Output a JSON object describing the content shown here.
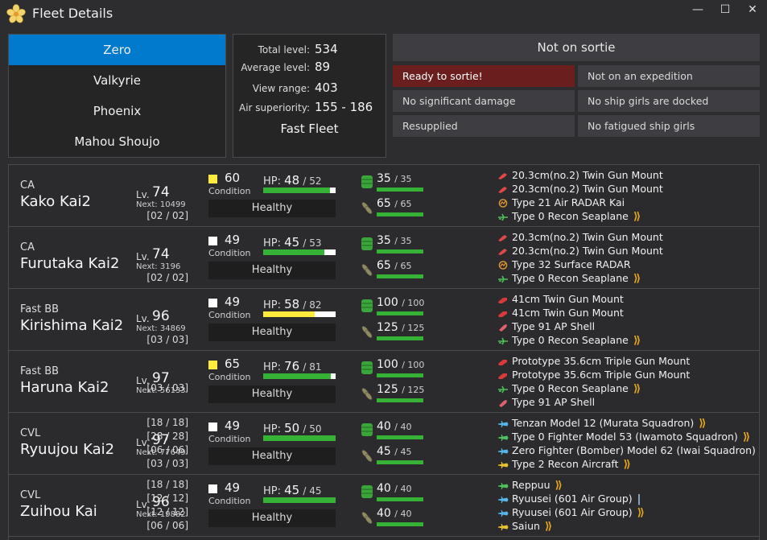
{
  "window": {
    "title": "Fleet Details",
    "icon": "flower-icon",
    "minimize_label": "—",
    "maximize_label": "☐",
    "close_label": "✕"
  },
  "fleets": [
    {
      "label": "Zero",
      "active": true
    },
    {
      "label": "Valkyrie",
      "active": false
    },
    {
      "label": "Phoenix",
      "active": false
    },
    {
      "label": "Mahou Shoujo",
      "active": false
    }
  ],
  "stats": {
    "total_level_label": "Total level:",
    "total_level": "534",
    "average_level_label": "Average level:",
    "average_level": "89",
    "view_range_label": "View range:",
    "view_range": "403",
    "air_superiority_label": "Air superiority:",
    "air_superiority": "155 - 186",
    "speed": "Fast Fleet"
  },
  "sortie": {
    "header": "Not on sortie",
    "conditions": [
      {
        "label": "Ready to sortie!",
        "alert": true
      },
      {
        "label": "Not on an expedition",
        "alert": false
      },
      {
        "label": "No significant damage",
        "alert": false
      },
      {
        "label": "No ship girls are docked",
        "alert": false
      },
      {
        "label": "Resupplied",
        "alert": false
      },
      {
        "label": "No fatigued ship girls",
        "alert": false
      }
    ]
  },
  "labels": {
    "lv": "Lv.",
    "next": "Next:",
    "condition": "Condition",
    "hp": "HP:"
  },
  "ships": [
    {
      "type": "CA",
      "name": "Kako Kai2",
      "level": "74",
      "next": "10499",
      "condition": "60",
      "condition_color": "#ffeb3b",
      "hp_current": "48",
      "hp_max": "/ 52",
      "hp_fraction": 0.923,
      "hp_color": "#36b336",
      "health": "Healthy",
      "fuel": "35",
      "fuel_max": "/ 35",
      "ammo": "65",
      "ammo_max": "/ 65",
      "equipment": [
        {
          "slot": "",
          "icon": "main-gun-icon",
          "name": "20.3cm(no.2) Twin Gun Mount",
          "prof": ""
        },
        {
          "slot": "",
          "icon": "main-gun-icon",
          "name": "20.3cm(no.2) Twin Gun Mount",
          "prof": ""
        },
        {
          "slot": "",
          "icon": "radar-icon",
          "name": "Type 21 Air RADAR Kai",
          "prof": ""
        },
        {
          "slot": "[02 / 02]",
          "icon": "seaplane-icon",
          "name": "Type 0 Recon Seaplane",
          "prof": "⟫"
        }
      ]
    },
    {
      "type": "CA",
      "name": "Furutaka Kai2",
      "level": "74",
      "next": "3196",
      "condition": "49",
      "condition_color": "#ffffff",
      "hp_current": "45",
      "hp_max": "/ 53",
      "hp_fraction": 0.849,
      "hp_color": "#36b336",
      "health": "Healthy",
      "fuel": "35",
      "fuel_max": "/ 35",
      "ammo": "65",
      "ammo_max": "/ 65",
      "equipment": [
        {
          "slot": "",
          "icon": "main-gun-icon",
          "name": "20.3cm(no.2) Twin Gun Mount",
          "prof": ""
        },
        {
          "slot": "",
          "icon": "main-gun-icon",
          "name": "20.3cm(no.2) Twin Gun Mount",
          "prof": ""
        },
        {
          "slot": "",
          "icon": "radar-icon",
          "name": "Type 32 Surface RADAR",
          "prof": ""
        },
        {
          "slot": "[02 / 02]",
          "icon": "seaplane-icon",
          "name": "Type 0 Recon Seaplane",
          "prof": "⟫"
        }
      ]
    },
    {
      "type": "Fast BB",
      "name": "Kirishima Kai2",
      "level": "96",
      "next": "34869",
      "condition": "49",
      "condition_color": "#ffffff",
      "hp_current": "58",
      "hp_max": "/ 82",
      "hp_fraction": 0.707,
      "hp_color": "#ffeb3b",
      "health": "Healthy",
      "fuel": "100",
      "fuel_max": "/ 100",
      "ammo": "125",
      "ammo_max": "/ 125",
      "equipment": [
        {
          "slot": "",
          "icon": "large-gun-icon",
          "name": "41cm Twin Gun Mount",
          "prof": ""
        },
        {
          "slot": "",
          "icon": "large-gun-icon",
          "name": "41cm Twin Gun Mount",
          "prof": ""
        },
        {
          "slot": "",
          "icon": "ap-shell-icon",
          "name": "Type 91 AP Shell",
          "prof": ""
        },
        {
          "slot": "[03 / 03]",
          "icon": "seaplane-icon",
          "name": "Type 0 Recon Seaplane",
          "prof": "⟫"
        }
      ]
    },
    {
      "type": "Fast BB",
      "name": "Haruna Kai2",
      "level": "97",
      "next": "56133",
      "condition": "65",
      "condition_color": "#ffeb3b",
      "hp_current": "76",
      "hp_max": "/ 81",
      "hp_fraction": 0.938,
      "hp_color": "#36b336",
      "health": "Healthy",
      "fuel": "100",
      "fuel_max": "/ 100",
      "ammo": "125",
      "ammo_max": "/ 125",
      "equipment": [
        {
          "slot": "",
          "icon": "large-gun-icon",
          "name": "Prototype 35.6cm Triple Gun Mount",
          "prof": ""
        },
        {
          "slot": "",
          "icon": "large-gun-icon",
          "name": "Prototype 35.6cm Triple Gun Mount",
          "prof": ""
        },
        {
          "slot": "[03 / 03]",
          "icon": "seaplane-icon",
          "name": "Type 0 Recon Seaplane",
          "prof": "⟫"
        },
        {
          "slot": "",
          "icon": "ap-shell-icon",
          "name": "Type 91 AP Shell",
          "prof": ""
        }
      ]
    },
    {
      "type": "CVL",
      "name": "Ryuujou Kai2",
      "level": "97",
      "next": "77649",
      "condition": "49",
      "condition_color": "#ffffff",
      "hp_current": "50",
      "hp_max": "/ 50",
      "hp_fraction": 1.0,
      "hp_color": "#36b336",
      "health": "Healthy",
      "fuel": "40",
      "fuel_max": "/ 40",
      "ammo": "45",
      "ammo_max": "/ 45",
      "equipment": [
        {
          "slot": "[18 / 18]",
          "icon": "torpedo-bomber-icon",
          "name": "Tenzan Model 12 (Murata Squadron)",
          "prof": "⟫"
        },
        {
          "slot": "[28 / 28]",
          "icon": "fighter-icon",
          "name": "Type 0 Fighter Model 53 (Iwamoto Squadron)",
          "prof": "⟫"
        },
        {
          "slot": "[06 / 06]",
          "icon": "fighter-bomber-icon",
          "name": "Zero Fighter (Bomber) Model 62 (Iwai Squadron)",
          "prof": "⟫"
        },
        {
          "slot": "[03 / 03]",
          "icon": "recon-aircraft-icon",
          "name": "Type 2 Recon Aircraft",
          "prof": "⟫"
        }
      ]
    },
    {
      "type": "CVL",
      "name": "Zuihou Kai",
      "level": "96",
      "next": "19882",
      "condition": "49",
      "condition_color": "#ffffff",
      "hp_current": "45",
      "hp_max": "/ 45",
      "hp_fraction": 1.0,
      "hp_color": "#36b336",
      "health": "Healthy",
      "fuel": "40",
      "fuel_max": "/ 40",
      "ammo": "40",
      "ammo_max": "/ 40",
      "equipment": [
        {
          "slot": "[18 / 18]",
          "icon": "fighter-icon",
          "name": "Reppuu",
          "prof": "⟫"
        },
        {
          "slot": "[12 / 12]",
          "icon": "torpedo-bomber-icon",
          "name": "Ryuusei (601 Air Group)",
          "prof": "|"
        },
        {
          "slot": "[12 / 12]",
          "icon": "torpedo-bomber-icon",
          "name": "Ryuusei (601 Air Group)",
          "prof": "⟫"
        },
        {
          "slot": "[06 / 06]",
          "icon": "recon-aircraft-icon",
          "name": "Saiun",
          "prof": "⟫"
        }
      ]
    }
  ],
  "colors": {
    "accent": "#007acc",
    "alert": "#6b1e1e",
    "bar_green": "#36b336",
    "bar_yellow": "#ffeb3b",
    "proficiency": "#e5a719"
  }
}
